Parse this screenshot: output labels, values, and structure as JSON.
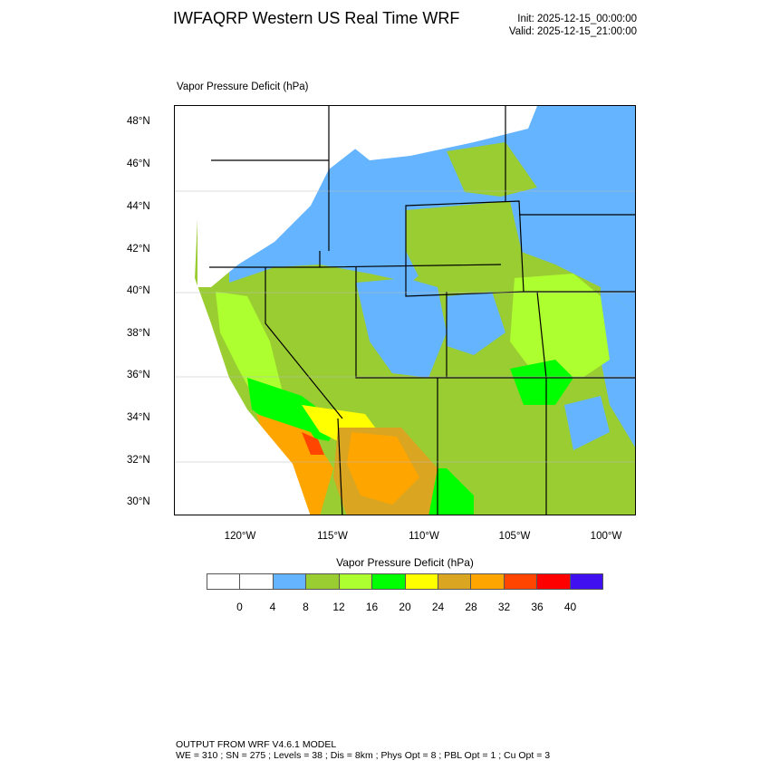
{
  "header": {
    "title": "IWFAQRP Western US Real Time WRF",
    "init": "Init: 2025-12-15_00:00:00",
    "valid": "Valid: 2025-12-15_21:00:00",
    "subtitle": "Vapor Pressure Deficit   (hPa)"
  },
  "map": {
    "lat_labels": [
      "48°N",
      "46°N",
      "44°N",
      "42°N",
      "40°N",
      "38°N",
      "36°N",
      "34°N",
      "32°N",
      "30°N"
    ],
    "lon_labels": [
      "120°W",
      "115°W",
      "110°W",
      "105°W",
      "100°W"
    ],
    "colors": {
      "white": "#ffffff",
      "blue": "#64b4ff",
      "olive": "#9acd32",
      "lightgreen": "#adff2f",
      "green": "#00ff00",
      "yellow": "#ffff00",
      "goldenrod": "#daa520",
      "orange": "#ffa500",
      "orangered": "#ff4500",
      "red": "#ff0000",
      "violet": "#4010f0"
    }
  },
  "colorbar": {
    "title": "Vapor Pressure Deficit  (hPa)",
    "colors": [
      "#ffffff",
      "#ffffff",
      "#64b4ff",
      "#9acd32",
      "#adff2f",
      "#00ff00",
      "#ffff00",
      "#daa520",
      "#ffa500",
      "#ff4500",
      "#ff0000",
      "#4010f0"
    ],
    "labels": [
      "0",
      "4",
      "8",
      "12",
      "16",
      "20",
      "24",
      "28",
      "32",
      "36",
      "40"
    ]
  },
  "footer": {
    "line1": "OUTPUT FROM WRF V4.6.1 MODEL",
    "line2": "WE = 310 ; SN = 275 ; Levels = 38 ; Dis = 8km ; Phys Opt = 8 ; PBL Opt = 1 ; Cu Opt = 3"
  }
}
